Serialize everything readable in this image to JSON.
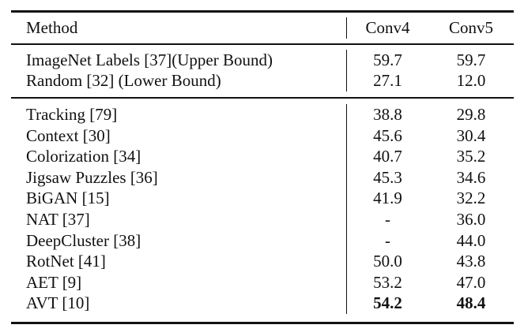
{
  "table": {
    "columns": [
      {
        "label": "Method"
      },
      {
        "label": "Conv4"
      },
      {
        "label": "Conv5"
      }
    ],
    "bounds_rows": [
      {
        "method": "ImageNet Labels [37](Upper Bound)",
        "conv4": "59.7",
        "conv5": "59.7",
        "bold_values": false
      },
      {
        "method": "Random [32] (Lower Bound)",
        "conv4": "27.1",
        "conv5": "12.0",
        "bold_values": false
      }
    ],
    "method_rows": [
      {
        "method": "Tracking [79]",
        "conv4": "38.8",
        "conv5": "29.8",
        "bold_values": false
      },
      {
        "method": "Context [30]",
        "conv4": "45.6",
        "conv5": "30.4",
        "bold_values": false
      },
      {
        "method": "Colorization [34]",
        "conv4": "40.7",
        "conv5": "35.2",
        "bold_values": false
      },
      {
        "method": "Jigsaw Puzzles [36]",
        "conv4": "45.3",
        "conv5": "34.6",
        "bold_values": false
      },
      {
        "method": "BiGAN [15]",
        "con4_note": "",
        "conv4": "41.9",
        "conv5": "32.2",
        "bold_values": false
      },
      {
        "method": "NAT [37]",
        "conv4": "-",
        "conv5": "36.0",
        "bold_values": false
      },
      {
        "method": "DeepCluster [38]",
        "conv4": "-",
        "conv5": "44.0",
        "bold_values": false
      },
      {
        "method": "RotNet [41]",
        "conv4": "50.0",
        "conv5": "43.8",
        "bold_values": false
      },
      {
        "method": "AET [9]",
        "conv4": "53.2",
        "conv5": "47.0",
        "bold_values": false
      },
      {
        "method": "AVT [10]",
        "conv4": "54.2",
        "conv5": "48.4",
        "bold_values": true
      }
    ],
    "colors": {
      "text": "#111111",
      "background": "#ffffff",
      "rule": "#111111"
    }
  }
}
